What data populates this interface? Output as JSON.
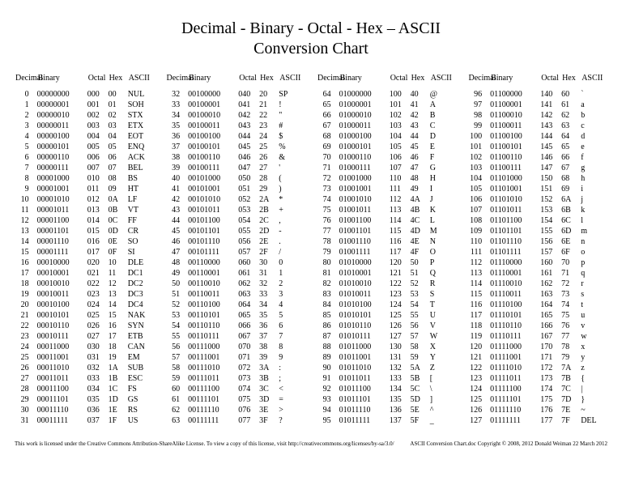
{
  "title_line1": "Decimal - Binary - Octal - Hex – ASCII",
  "title_line2": "Conversion Chart",
  "headers": [
    "Decimal",
    "Binary",
    "Octal",
    "Hex",
    "ASCII"
  ],
  "ascii": [
    "NUL",
    "SOH",
    "STX",
    "ETX",
    "EOT",
    "ENQ",
    "ACK",
    "BEL",
    "BS",
    "HT",
    "LF",
    "VT",
    "FF",
    "CR",
    "SO",
    "SI",
    "DLE",
    "DC1",
    "DC2",
    "DC3",
    "DC4",
    "NAK",
    "SYN",
    "ETB",
    "CAN",
    "EM",
    "SUB",
    "ESC",
    "FS",
    "GS",
    "RS",
    "US",
    "SP",
    "!",
    "\"",
    "#",
    "$",
    "%",
    "&",
    "'",
    "(",
    ")",
    "*",
    "+",
    ",",
    "-",
    ".",
    "/",
    "0",
    "1",
    "2",
    "3",
    "4",
    "5",
    "6",
    "7",
    "8",
    "9",
    ":",
    ";",
    "<",
    "=",
    ">",
    "?",
    "@",
    "A",
    "B",
    "C",
    "D",
    "E",
    "F",
    "G",
    "H",
    "I",
    "J",
    "K",
    "L",
    "M",
    "N",
    "O",
    "P",
    "Q",
    "R",
    "S",
    "T",
    "U",
    "V",
    "W",
    "X",
    "Y",
    "Z",
    "[",
    "\\",
    "]",
    "^",
    "_",
    "`",
    "a",
    "b",
    "c",
    "d",
    "e",
    "f",
    "g",
    "h",
    "i",
    "j",
    "k",
    "l",
    "m",
    "n",
    "o",
    "p",
    "q",
    "r",
    "s",
    "t",
    "u",
    "v",
    "w",
    "x",
    "y",
    "z",
    "{",
    "|",
    "}",
    "~",
    "DEL"
  ],
  "footer_left": "This work is licensed under the Creative Commons Attribution-ShareAlike License.  To view a copy of this license, visit  http://creativecommons.org/licenses/by-sa/3.0/",
  "footer_right": "ASCII Conversion Chart.doc    Copyright © 2008, 2012    Donald Weiman    22 March 2012"
}
